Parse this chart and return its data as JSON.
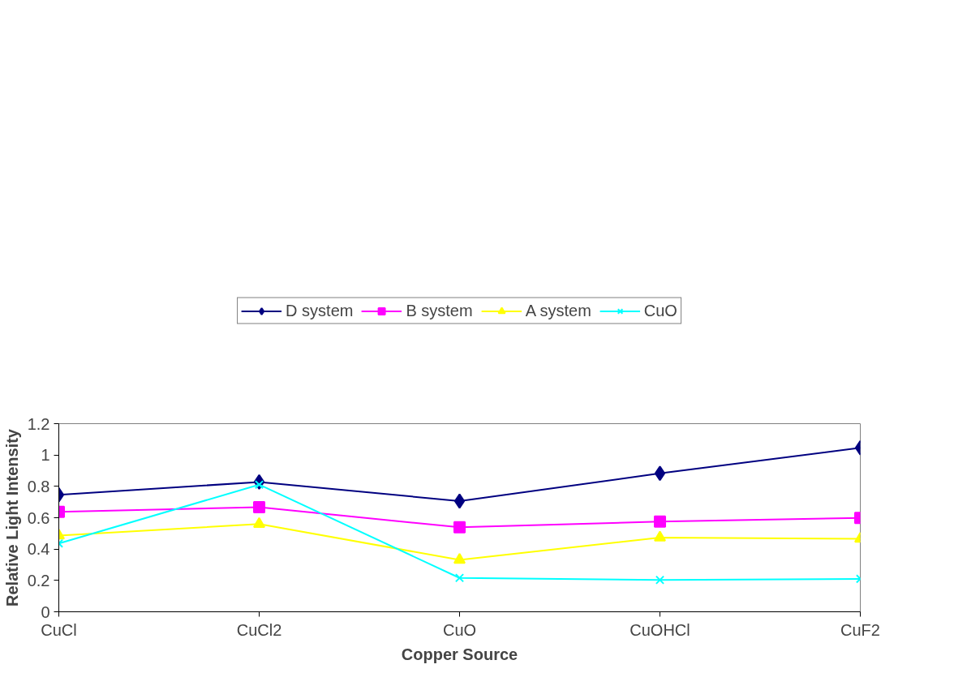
{
  "chart_data": {
    "type": "line",
    "xlabel": "Copper Source",
    "ylabel": "Relative Light Intensity",
    "categories": [
      "CuCl",
      "CuCl2",
      "CuO",
      "CuOHCl",
      "CuF2"
    ],
    "series": [
      {
        "name": "D system",
        "color": "#000080",
        "marker": "diamond",
        "values": [
          0.746,
          0.828,
          0.706,
          0.883,
          1.046
        ]
      },
      {
        "name": "B system",
        "color": "#ff00ff",
        "marker": "square",
        "values": [
          0.638,
          0.667,
          0.539,
          0.575,
          0.599
        ]
      },
      {
        "name": "A system",
        "color": "#ffff00",
        "marker": "triangle",
        "values": [
          0.486,
          0.56,
          0.331,
          0.473,
          0.466
        ]
      },
      {
        "name": "CuO",
        "color": "#00ffff",
        "marker": "cross",
        "values": [
          0.436,
          0.811,
          0.216,
          0.203,
          0.21
        ]
      }
    ],
    "ylim": [
      0,
      1.2
    ],
    "yticks": [
      0,
      0.2,
      0.4,
      0.6,
      0.8,
      1,
      1.2
    ],
    "grid": false,
    "legend": "top",
    "line_style": "solid"
  }
}
